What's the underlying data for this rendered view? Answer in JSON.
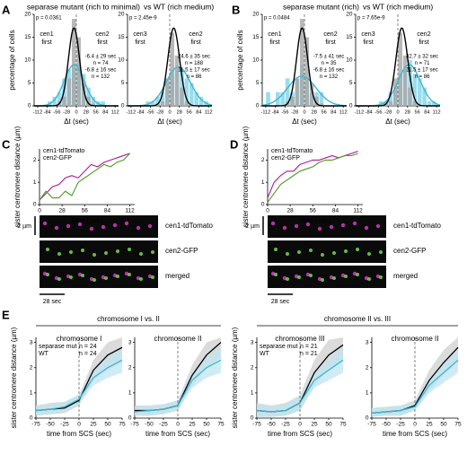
{
  "figure": {
    "panel_labels": [
      "A",
      "B",
      "C",
      "D",
      "E"
    ],
    "headers": [
      [
        {
          "text": "separase mutant (rich to minimal)",
          "color": "#3fb6d3"
        },
        {
          "text": "vs WT (rich medium)",
          "color": "#000000"
        }
      ],
      [
        {
          "text": "separase mutant (rich)",
          "color": "#3fb6d3"
        },
        {
          "text": "vs WT (rich medium)",
          "color": "#000000"
        }
      ]
    ],
    "microscopy": [
      {
        "labels": [
          {
            "text": "cen1-tdTomato",
            "color": "#b0179a"
          },
          {
            "text": "cen2-GFP",
            "color": "#4f9a22"
          },
          {
            "text": "merged",
            "color": "#000000"
          }
        ],
        "scale_bar": "2 µm",
        "time_bar": "28 sec"
      },
      {
        "labels": [
          {
            "text": "cen1-tdTomato",
            "color": "#b0179a"
          },
          {
            "text": "cen2-GFP",
            "color": "#4f9a22"
          },
          {
            "text": "merged",
            "color": "#000000"
          }
        ],
        "scale_bar": "2 µm",
        "time_bar": "28 sec"
      }
    ],
    "e_groups": [
      "chromosome I vs. II",
      "chromosome II vs. III"
    ]
  },
  "chart_data": [
    {
      "type": "histogram",
      "ylabel": "percentage of cells",
      "xlabel": "Δt (sec)",
      "bins": [
        -112,
        -98,
        -84,
        -70,
        -56,
        -42,
        -28,
        -14,
        0,
        14,
        28,
        42,
        56,
        70,
        84,
        98,
        112
      ],
      "series": [
        {
          "color": "#7fd4e8",
          "values": [
            0,
            0,
            1,
            2,
            3,
            6,
            8,
            9,
            9,
            7,
            4,
            2,
            1,
            1,
            0,
            0
          ]
        },
        {
          "color": "#a6a6a6",
          "values": [
            0,
            0,
            0,
            0,
            1,
            2,
            6,
            19,
            15,
            5,
            2,
            0.5,
            0,
            0,
            0,
            0
          ]
        }
      ],
      "fits": [
        {
          "color": "#3fb6d3",
          "mean": -6.4,
          "sd": 29,
          "peak": 9
        },
        {
          "color": "#000000",
          "mean": -6.8,
          "sd": 16,
          "peak": 17
        }
      ],
      "p_value": "p = 0.0361",
      "left_label": [
        "cen1",
        "first"
      ],
      "right_label": [
        "cen2",
        "first"
      ],
      "stats": [
        {
          "text": "-6.4 ± 29 sec",
          "color": "#3fb6d3"
        },
        {
          "text": "n = 74",
          "color": "#3fb6d3"
        },
        {
          "text": "-6.8 ± 16 sec",
          "color": "#000000"
        },
        {
          "text": "n = 132",
          "color": "#000000"
        }
      ],
      "xlim": [
        -122,
        122
      ],
      "xticks": [
        -112,
        -84,
        -56,
        -28,
        0,
        28,
        56,
        84,
        112
      ],
      "ylim": [
        0,
        20
      ],
      "yticks": [
        0,
        5,
        10,
        15,
        20
      ]
    },
    {
      "type": "histogram",
      "xlabel": "Δt (sec)",
      "bins": [
        -112,
        -98,
        -84,
        -70,
        -56,
        -42,
        -28,
        -14,
        0,
        14,
        28,
        42,
        56,
        70,
        84,
        98,
        112
      ],
      "series": [
        {
          "color": "#7fd4e8",
          "values": [
            0,
            0,
            0,
            1,
            1,
            2,
            3,
            5,
            7,
            8,
            8,
            6,
            5,
            3,
            2,
            1
          ]
        },
        {
          "color": "#a6a6a6",
          "values": [
            0,
            0,
            0,
            0,
            0,
            0.5,
            1,
            6,
            16,
            11,
            4,
            1,
            0,
            0,
            0,
            0
          ]
        }
      ],
      "fits": [
        {
          "color": "#3fb6d3",
          "mean": 24.6,
          "sd": 35,
          "peak": 8.5
        },
        {
          "color": "#000000",
          "mean": 11.5,
          "sd": 17,
          "peak": 17
        }
      ],
      "p_value": "p = 2.45e-9",
      "left_label": [
        "cen3",
        "first"
      ],
      "right_label": [
        "cen2",
        "first"
      ],
      "stats": [
        {
          "text": "24.6 ± 35 sec",
          "color": "#3fb6d3"
        },
        {
          "text": "n = 188",
          "color": "#3fb6d3"
        },
        {
          "text": "11.5 ± 17 sec",
          "color": "#000000"
        },
        {
          "text": "n = 86",
          "color": "#000000"
        }
      ],
      "xlim": [
        -122,
        122
      ],
      "xticks": [
        -112,
        -84,
        -56,
        -28,
        0,
        28,
        56,
        84,
        112
      ],
      "ylim": [
        0,
        20
      ],
      "yticks": [
        0,
        5,
        10,
        15,
        20
      ]
    },
    {
      "type": "histogram",
      "ylabel": "percentage of cells",
      "xlabel": "Δt (sec)",
      "bins": [
        -112,
        -98,
        -84,
        -70,
        -56,
        -42,
        -28,
        -14,
        0,
        14,
        28,
        42,
        56,
        70,
        84,
        98,
        112
      ],
      "series": [
        {
          "color": "#7fd4e8",
          "values": [
            3,
            0,
            3,
            3,
            6,
            3,
            6,
            9,
            6,
            3,
            3,
            3,
            0,
            0,
            0,
            0
          ]
        },
        {
          "color": "#a6a6a6",
          "values": [
            0,
            0,
            0,
            0,
            1,
            2,
            6,
            19,
            15,
            5,
            2,
            0.5,
            0,
            0,
            0,
            0
          ]
        }
      ],
      "fits": [
        {
          "color": "#3fb6d3",
          "mean": -7.5,
          "sd": 41,
          "peak": 6.5
        },
        {
          "color": "#000000",
          "mean": -6.8,
          "sd": 16,
          "peak": 17
        }
      ],
      "p_value": "p = 0.0484",
      "left_label": [
        "cen1",
        "first"
      ],
      "right_label": [
        "cen2",
        "first"
      ],
      "stats": [
        {
          "text": "-7.5 ± 41 sec",
          "color": "#3fb6d3"
        },
        {
          "text": "n = 35",
          "color": "#3fb6d3"
        },
        {
          "text": "-6.8 ± 16 sec",
          "color": "#000000"
        },
        {
          "text": "n = 132",
          "color": "#000000"
        }
      ],
      "xlim": [
        -122,
        122
      ],
      "xticks": [
        -112,
        -84,
        -56,
        -28,
        0,
        28,
        56,
        84,
        112
      ],
      "ylim": [
        0,
        20
      ],
      "yticks": [
        0,
        5,
        10,
        15,
        20
      ]
    },
    {
      "type": "histogram",
      "xlabel": "Δt (sec)",
      "bins": [
        -112,
        -98,
        -84,
        -70,
        -56,
        -42,
        -28,
        -14,
        0,
        14,
        28,
        42,
        56,
        70,
        84,
        98,
        112
      ],
      "series": [
        {
          "color": "#7fd4e8",
          "values": [
            0,
            0,
            0,
            0,
            1,
            1,
            3,
            4,
            7,
            8,
            10,
            7,
            6,
            4,
            1,
            1
          ]
        },
        {
          "color": "#a6a6a6",
          "values": [
            0,
            0,
            0,
            0,
            0,
            0.5,
            1,
            6,
            16,
            11,
            4,
            1,
            0,
            0,
            0,
            0
          ]
        }
      ],
      "fits": [
        {
          "color": "#3fb6d3",
          "mean": 32.7,
          "sd": 32,
          "peak": 9
        },
        {
          "color": "#000000",
          "mean": 11.5,
          "sd": 17,
          "peak": 17
        }
      ],
      "p_value": "p = 7.65e-9",
      "left_label": [
        "cen3",
        "first"
      ],
      "right_label": [
        "cen2",
        "first"
      ],
      "stats": [
        {
          "text": "32.7 ± 32 sec",
          "color": "#3fb6d3"
        },
        {
          "text": "n = 71",
          "color": "#3fb6d3"
        },
        {
          "text": "11.5 ± 17 sec",
          "color": "#000000"
        },
        {
          "text": "n = 86",
          "color": "#000000"
        }
      ],
      "xlim": [
        -122,
        122
      ],
      "xticks": [
        -112,
        -84,
        -56,
        -28,
        0,
        28,
        56,
        84,
        112
      ],
      "ylim": [
        0,
        20
      ],
      "yticks": [
        0,
        5,
        10,
        15,
        20
      ]
    },
    {
      "type": "line",
      "ylabel": "sister centromere distance (µm)",
      "xlabel": "time (sec)",
      "x": [
        0,
        8,
        16,
        24,
        32,
        40,
        48,
        56,
        64,
        72,
        80,
        88,
        96,
        104,
        112
      ],
      "series": [
        {
          "name": "cen1-tdTomato",
          "color": "#b0179a",
          "values": [
            0.2,
            0.5,
            0.8,
            0.9,
            1.2,
            1.3,
            1.2,
            1.5,
            1.8,
            1.7,
            1.9,
            2.0,
            2.1,
            2.2,
            2.3
          ]
        },
        {
          "name": "cen2-GFP",
          "color": "#4f9a22",
          "values": [
            0.2,
            0.6,
            0.3,
            0.3,
            0.6,
            0.4,
            1.0,
            1.2,
            1.4,
            1.6,
            1.8,
            1.7,
            1.9,
            2.0,
            2.3
          ]
        }
      ],
      "xlim": [
        0,
        118
      ],
      "xticks": [
        0,
        28,
        56,
        84,
        112
      ],
      "ylim": [
        0,
        2.5
      ],
      "yticks": [
        0,
        1,
        2
      ]
    },
    {
      "type": "line",
      "ylabel": "sister centromere distance (µm)",
      "xlabel": "time (sec)",
      "x": [
        0,
        8,
        16,
        24,
        32,
        40,
        48,
        56,
        64,
        72,
        80,
        88,
        96,
        104,
        112
      ],
      "series": [
        {
          "name": "cen1-tdTomato",
          "color": "#b0179a",
          "values": [
            0.3,
            1.0,
            1.3,
            1.5,
            1.5,
            1.8,
            1.9,
            2.0,
            2.0,
            2.1,
            2.2,
            2.1,
            2.2,
            2.3,
            2.4
          ]
        },
        {
          "name": "cen2-GFP",
          "color": "#4f9a22",
          "values": [
            0.1,
            0.5,
            0.9,
            1.1,
            1.3,
            1.5,
            1.6,
            1.7,
            1.9,
            2.0,
            2.0,
            2.1,
            2.2,
            2.2,
            2.3
          ]
        }
      ],
      "xlim": [
        0,
        118
      ],
      "xticks": [
        0,
        28,
        56,
        84,
        112
      ],
      "ylim": [
        0,
        2.5
      ],
      "yticks": [
        0,
        1,
        2
      ]
    },
    {
      "type": "band",
      "title": "chromosome I",
      "ylabel": "sister centromere distance (µm)",
      "xlabel": "time from SCS (sec)",
      "x": [
        -75,
        -50,
        -25,
        0,
        25,
        50,
        75
      ],
      "series": [
        {
          "name": "separase mut",
          "n_label": "n = 24",
          "color": "#3fb6d3",
          "band": "#bfe6f0",
          "values": [
            0.3,
            0.35,
            0.45,
            0.75,
            1.6,
            2.0,
            2.3
          ],
          "lower": [
            0.1,
            0.15,
            0.25,
            0.55,
            1.3,
            1.6,
            1.8
          ],
          "upper": [
            0.5,
            0.55,
            0.65,
            0.95,
            1.9,
            2.4,
            2.8
          ]
        },
        {
          "name": "WT",
          "n_label": "n = 24",
          "color": "#000000",
          "band": "#cfcfcf",
          "values": [
            0.3,
            0.35,
            0.4,
            0.7,
            1.9,
            2.5,
            2.8
          ],
          "lower": [
            0.1,
            0.15,
            0.2,
            0.5,
            1.5,
            1.9,
            2.2
          ],
          "upper": [
            0.5,
            0.6,
            0.65,
            0.9,
            2.3,
            3.0,
            3.2
          ]
        }
      ],
      "xlim": [
        -75,
        75
      ],
      "xticks": [
        -75,
        -50,
        -25,
        0,
        25,
        50,
        75
      ],
      "ylim": [
        0,
        3.2
      ],
      "yticks": [
        0,
        1,
        2,
        3
      ]
    },
    {
      "type": "band",
      "title": "chromosome II",
      "xlabel": "time from SCS (sec)",
      "x": [
        -75,
        -50,
        -25,
        0,
        25,
        50,
        75
      ],
      "series": [
        {
          "color": "#3fb6d3",
          "band": "#bfe6f0",
          "values": [
            0.25,
            0.3,
            0.35,
            0.5,
            1.5,
            2.0,
            2.3
          ],
          "lower": [
            0.1,
            0.1,
            0.15,
            0.3,
            1.2,
            1.6,
            1.8
          ],
          "upper": [
            0.45,
            0.5,
            0.55,
            0.7,
            1.8,
            2.4,
            2.8
          ]
        },
        {
          "color": "#000000",
          "band": "#cfcfcf",
          "values": [
            0.3,
            0.3,
            0.35,
            0.5,
            1.7,
            2.5,
            3.0
          ],
          "lower": [
            0.1,
            0.1,
            0.15,
            0.3,
            1.3,
            2.0,
            2.4
          ],
          "upper": [
            0.5,
            0.5,
            0.55,
            0.7,
            2.1,
            3.0,
            3.2
          ]
        }
      ],
      "xlim": [
        -75,
        75
      ],
      "xticks": [
        -75,
        -50,
        -25,
        0,
        25,
        50,
        75
      ],
      "ylim": [
        0,
        3.2
      ],
      "yticks": [
        0,
        1,
        2,
        3
      ]
    },
    {
      "type": "band",
      "title": "chromosome III",
      "ylabel": "sister centromere distance (µm)",
      "xlabel": "time from SCS (sec)",
      "x": [
        -75,
        -50,
        -25,
        0,
        25,
        50,
        75
      ],
      "series": [
        {
          "name": "separase mut",
          "n_label": "n = 21",
          "color": "#3fb6d3",
          "band": "#bfe6f0",
          "values": [
            0.3,
            0.25,
            0.3,
            0.6,
            1.5,
            1.9,
            2.3
          ],
          "lower": [
            0.05,
            0.05,
            0.1,
            0.3,
            1.2,
            1.5,
            1.8
          ],
          "upper": [
            0.55,
            0.5,
            0.55,
            0.9,
            1.8,
            2.3,
            2.8
          ]
        },
        {
          "name": "WT",
          "n_label": "n = 21",
          "color": "#000000",
          "band": "#cfcfcf",
          "values": [
            0.3,
            0.25,
            0.3,
            0.6,
            1.8,
            2.5,
            2.9
          ],
          "lower": [
            0.05,
            0.05,
            0.1,
            0.3,
            1.3,
            1.9,
            2.3
          ],
          "upper": [
            0.6,
            0.5,
            0.6,
            0.9,
            2.3,
            3.1,
            3.2
          ]
        }
      ],
      "xlim": [
        -75,
        75
      ],
      "xticks": [
        -75,
        -50,
        -25,
        0,
        25,
        50,
        75
      ],
      "ylim": [
        0,
        3.2
      ],
      "yticks": [
        0,
        1,
        2,
        3
      ]
    },
    {
      "type": "band",
      "title": "chromosome II",
      "xlabel": "time from SCS (sec)",
      "x": [
        -75,
        -50,
        -25,
        0,
        25,
        50,
        75
      ],
      "series": [
        {
          "color": "#3fb6d3",
          "band": "#bfe6f0",
          "values": [
            0.2,
            0.25,
            0.3,
            0.45,
            1.3,
            1.8,
            2.3
          ],
          "lower": [
            0.05,
            0.1,
            0.1,
            0.3,
            1.0,
            1.4,
            1.8
          ],
          "upper": [
            0.4,
            0.45,
            0.5,
            0.65,
            1.6,
            2.2,
            2.7
          ]
        },
        {
          "color": "#000000",
          "band": "#cfcfcf",
          "values": [
            0.2,
            0.25,
            0.3,
            0.5,
            1.5,
            2.2,
            2.8
          ],
          "lower": [
            0.05,
            0.1,
            0.1,
            0.3,
            1.1,
            1.7,
            2.2
          ],
          "upper": [
            0.4,
            0.45,
            0.5,
            0.7,
            1.9,
            2.7,
            3.2
          ]
        }
      ],
      "xlim": [
        -75,
        75
      ],
      "xticks": [
        -75,
        -50,
        -25,
        0,
        25,
        50,
        75
      ],
      "ylim": [
        0,
        3.2
      ],
      "yticks": [
        0,
        1,
        2,
        3
      ]
    }
  ]
}
